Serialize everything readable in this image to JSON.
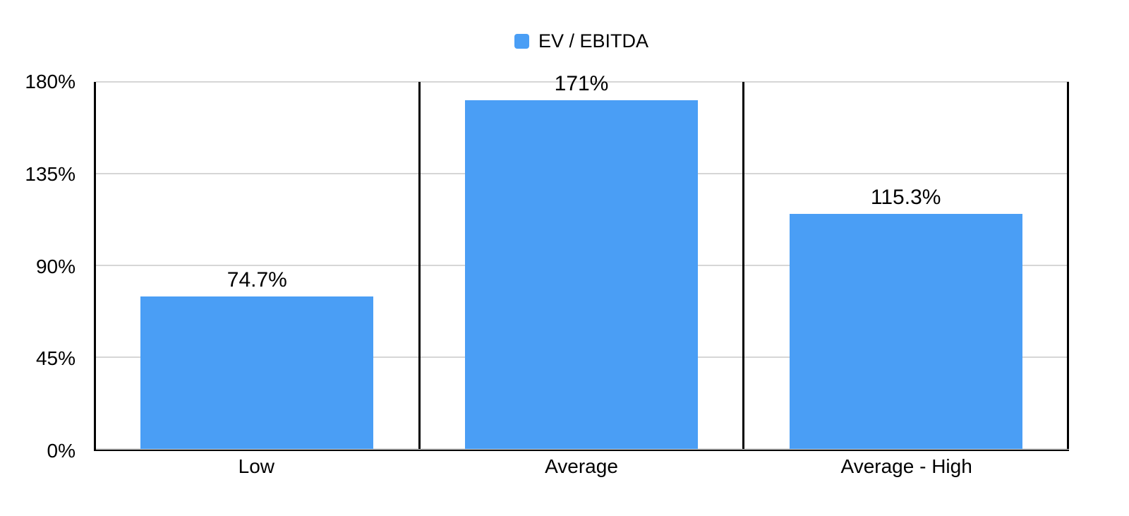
{
  "legend": {
    "label": "EV / EBITDA",
    "position": "top-center"
  },
  "chart_data": {
    "type": "bar",
    "title": "",
    "xlabel": "",
    "ylabel": "",
    "categories": [
      "Low",
      "Average",
      "Average - High"
    ],
    "series": [
      {
        "name": "EV / EBITDA",
        "values": [
          74.7,
          171,
          115.3
        ],
        "color": "#4A9EF5"
      }
    ],
    "data_labels": [
      "74.7%",
      "171%",
      "115.3%"
    ],
    "ylim": [
      0,
      180
    ],
    "yticks": [
      {
        "value": 0,
        "label": "0%"
      },
      {
        "value": 45,
        "label": "45%"
      },
      {
        "value": 90,
        "label": "90%"
      },
      {
        "value": 135,
        "label": "135%"
      },
      {
        "value": 180,
        "label": "180%"
      }
    ],
    "grid": true,
    "category_dividers": true,
    "legend_position": "top-center",
    "colors": {
      "bar": "#4A9EF5",
      "axis": "#000000",
      "gridline": "#D6D6D6",
      "text": "#000000",
      "background": "#FFFFFF"
    }
  }
}
